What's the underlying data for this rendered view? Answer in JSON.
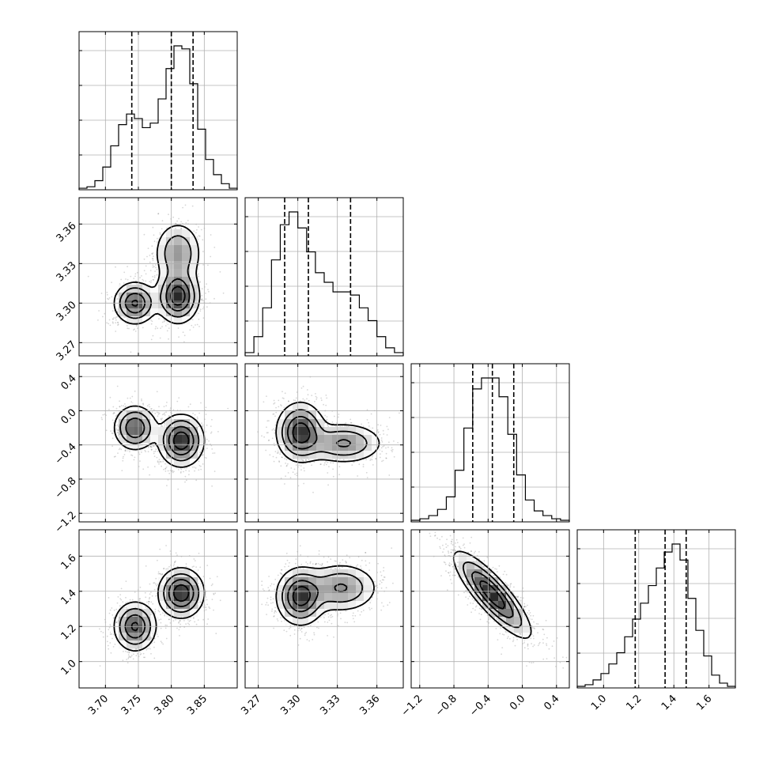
{
  "chart_data": {
    "type": "corner",
    "parameters": [
      {
        "range": [
          3.66,
          3.9
        ],
        "ticks": [
          3.7,
          3.75,
          3.8,
          3.85
        ],
        "tick_labels": [
          "3.70",
          "3.75",
          "3.80",
          "3.85"
        ],
        "quantiles": [
          3.74,
          3.8,
          3.833
        ],
        "hist_counts": [
          1,
          2,
          6,
          15,
          29,
          43,
          50,
          47,
          41,
          44,
          60,
          80,
          95,
          93,
          70,
          40,
          20,
          10,
          4,
          1
        ]
      },
      {
        "range": [
          3.26,
          3.38
        ],
        "ticks": [
          3.27,
          3.3,
          3.33,
          3.36
        ],
        "tick_labels": [
          "3.27",
          "3.30",
          "3.33",
          "3.36"
        ],
        "quantiles": [
          3.29,
          3.308,
          3.34
        ],
        "hist_counts": [
          2,
          12,
          30,
          60,
          82,
          90,
          80,
          65,
          52,
          46,
          40,
          40,
          38,
          30,
          22,
          12,
          5,
          2
        ]
      },
      {
        "range": [
          -1.3,
          0.55
        ],
        "ticks": [
          -1.2,
          -0.8,
          -0.4,
          0.0,
          0.4
        ],
        "tick_labels": [
          "−1.2",
          "−0.8",
          "−0.4",
          "0.0",
          "0.4"
        ],
        "quantiles": [
          -0.58,
          -0.35,
          -0.1
        ],
        "hist_counts": [
          1,
          2,
          4,
          8,
          16,
          33,
          60,
          85,
          92,
          92,
          80,
          56,
          30,
          14,
          7,
          4,
          2,
          1
        ]
      },
      {
        "range": [
          0.85,
          1.75
        ],
        "ticks": [
          1.0,
          1.2,
          1.4,
          1.6
        ],
        "tick_labels": [
          "1.0",
          "1.2",
          "1.4",
          "1.6"
        ],
        "quantiles": [
          1.18,
          1.35,
          1.47
        ],
        "hist_counts": [
          1,
          2,
          5,
          9,
          15,
          22,
          32,
          43,
          53,
          64,
          75,
          85,
          90,
          80,
          56,
          36,
          20,
          8,
          3,
          1
        ]
      }
    ],
    "pairs": [
      {
        "x": 0,
        "y": 1,
        "modes": [
          [
            3.745,
            3.3,
            0.85,
            0.016,
            0.008
          ],
          [
            3.81,
            3.305,
            1.0,
            0.016,
            0.01
          ],
          [
            3.81,
            3.338,
            0.55,
            0.018,
            0.012
          ]
        ]
      },
      {
        "x": 0,
        "y": 2,
        "modes": [
          [
            3.745,
            -0.2,
            0.8,
            0.016,
            0.13
          ],
          [
            3.815,
            -0.35,
            1.0,
            0.017,
            0.15
          ]
        ]
      },
      {
        "x": 1,
        "y": 2,
        "modes": [
          [
            3.302,
            -0.25,
            1.0,
            0.009,
            0.17
          ],
          [
            3.335,
            -0.38,
            0.6,
            0.015,
            0.12
          ]
        ]
      },
      {
        "x": 0,
        "y": 3,
        "modes": [
          [
            3.745,
            1.2,
            0.85,
            0.016,
            0.07
          ],
          [
            3.815,
            1.39,
            1.0,
            0.017,
            0.07
          ]
        ]
      },
      {
        "x": 1,
        "y": 3,
        "modes": [
          [
            3.302,
            1.37,
            1.0,
            0.009,
            0.08
          ],
          [
            3.333,
            1.42,
            0.6,
            0.014,
            0.07
          ]
        ]
      },
      {
        "x": 2,
        "y": 3,
        "modes": [
          [
            -0.35,
            1.38,
            1.0,
            0.22,
            0.12,
            -0.85
          ]
        ]
      }
    ]
  }
}
